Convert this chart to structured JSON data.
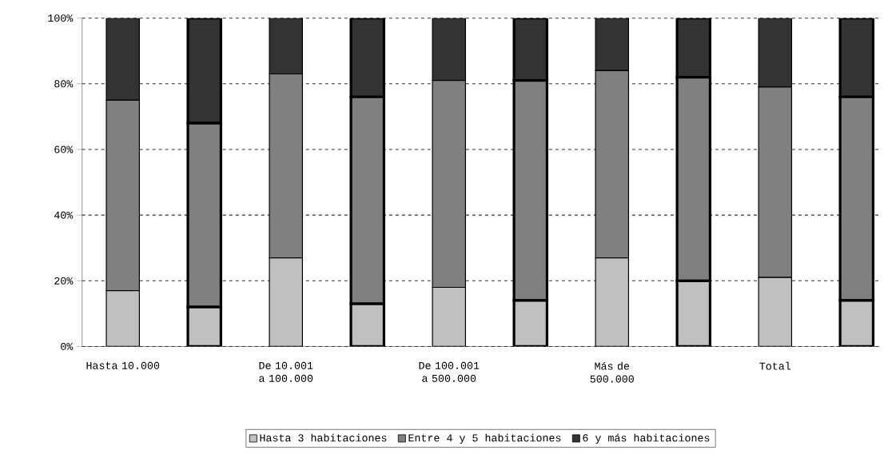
{
  "chart_data": {
    "type": "bar",
    "stacked": true,
    "categories": [
      "Hasta 10.000",
      null,
      "De 10.001 a 100.000",
      null,
      "De 100.001 a 500.000",
      null,
      "Más de 500.000",
      null,
      "Total",
      null
    ],
    "series": [
      {
        "name": "Hasta 3 habitaciones",
        "color": "#c0c0c0",
        "values": [
          17,
          12,
          27,
          13,
          18,
          14,
          27,
          20,
          21,
          14
        ]
      },
      {
        "name": "Entre 4 y 5 habitaciones",
        "color": "#808080",
        "values": [
          58,
          56,
          56,
          63,
          63,
          67,
          57,
          62,
          58,
          62
        ]
      },
      {
        "name": "6 y más habitaciones",
        "color": "#333333",
        "values": [
          25,
          32,
          17,
          24,
          19,
          19,
          16,
          18,
          21,
          24
        ]
      }
    ],
    "ylim": [
      0,
      100
    ],
    "yticks": [
      {
        "value": 0,
        "label": "0%"
      },
      {
        "value": 20,
        "label": "20%"
      },
      {
        "value": 40,
        "label": "40%"
      },
      {
        "value": 60,
        "label": "60%"
      },
      {
        "value": 80,
        "label": "80%"
      },
      {
        "value": 100,
        "label": "100%"
      }
    ],
    "grid": "y",
    "legend": "bottom"
  }
}
